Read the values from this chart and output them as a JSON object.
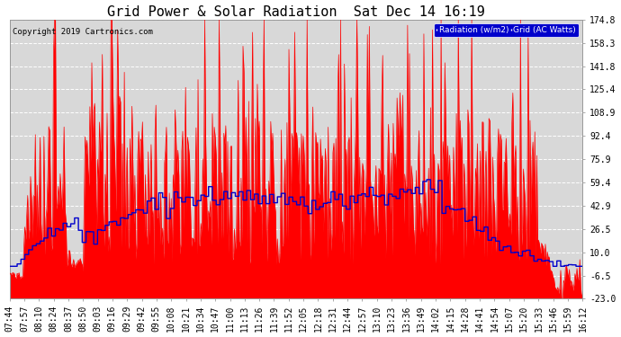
{
  "title": "Grid Power & Solar Radiation  Sat Dec 14 16:19",
  "copyright": "Copyright 2019 Cartronics.com",
  "legend_radiation": "Radiation (w/m2)",
  "legend_grid": "Grid (AC Watts)",
  "ymin": -23.0,
  "ymax": 174.8,
  "yticks": [
    174.8,
    158.3,
    141.8,
    125.4,
    108.9,
    92.4,
    75.9,
    59.4,
    42.9,
    26.5,
    10.0,
    -6.5,
    -23.0
  ],
  "background_color": "#ffffff",
  "plot_bg_color": "#d8d8d8",
  "grid_color": "#ffffff",
  "radiation_color": "#0000cc",
  "grid_fill_color": "#ff0000",
  "title_fontsize": 11,
  "tick_fontsize": 7,
  "xtick_labels": [
    "07:44",
    "07:57",
    "08:10",
    "08:24",
    "08:37",
    "08:50",
    "09:03",
    "09:16",
    "09:29",
    "09:42",
    "09:55",
    "10:08",
    "10:21",
    "10:34",
    "10:47",
    "11:00",
    "11:13",
    "11:26",
    "11:39",
    "11:52",
    "12:05",
    "12:18",
    "12:31",
    "12:44",
    "12:57",
    "13:10",
    "13:23",
    "13:36",
    "13:49",
    "14:02",
    "14:15",
    "14:28",
    "14:41",
    "14:54",
    "15:07",
    "15:20",
    "15:33",
    "15:46",
    "15:59",
    "16:12"
  ]
}
